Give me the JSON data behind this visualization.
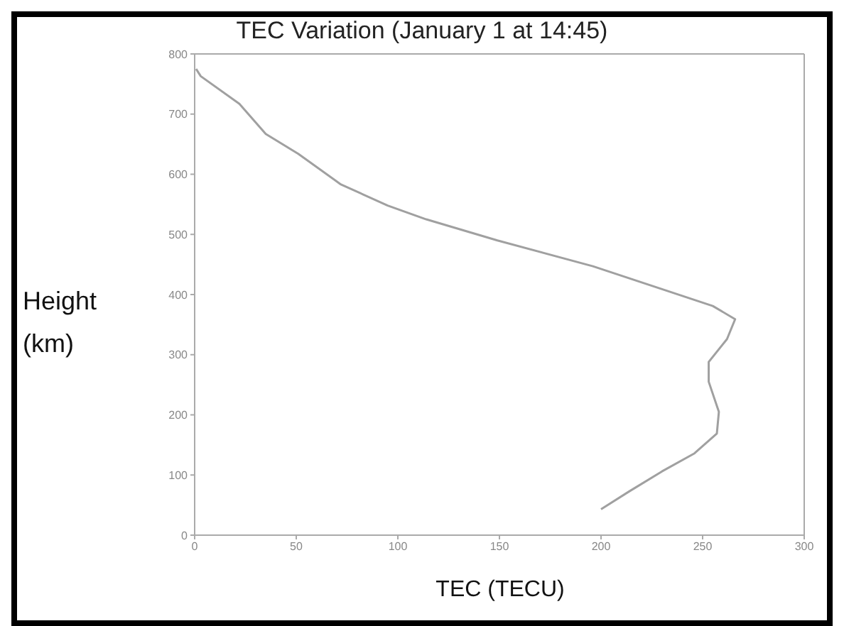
{
  "chart_data": {
    "type": "line",
    "title": "TEC Variation (January 1 at 14:45)",
    "xlabel": "TEC (TECU)",
    "ylabel": "Height (km)",
    "series": [
      {
        "color": "#a0a0a0",
        "x": [
          0.7,
          3,
          22,
          35,
          51,
          72,
          95,
          114,
          149,
          196,
          230,
          255,
          266,
          262,
          253,
          253,
          258,
          257,
          246,
          230,
          214,
          200
        ],
        "values": [
          775,
          763,
          717,
          667,
          634,
          583,
          548,
          525,
          490,
          447,
          409,
          381,
          359,
          326,
          288,
          255,
          205,
          169,
          136,
          106,
          73,
          43
        ]
      }
    ],
    "xlim": [
      0,
      300
    ],
    "xticks": [
      0,
      50,
      100,
      150,
      200,
      250,
      300
    ],
    "ylim": [
      0,
      800
    ],
    "yticks": [
      0,
      100,
      200,
      300,
      400,
      500,
      600,
      700,
      800
    ],
    "marker": "none",
    "line_style": "solid"
  }
}
